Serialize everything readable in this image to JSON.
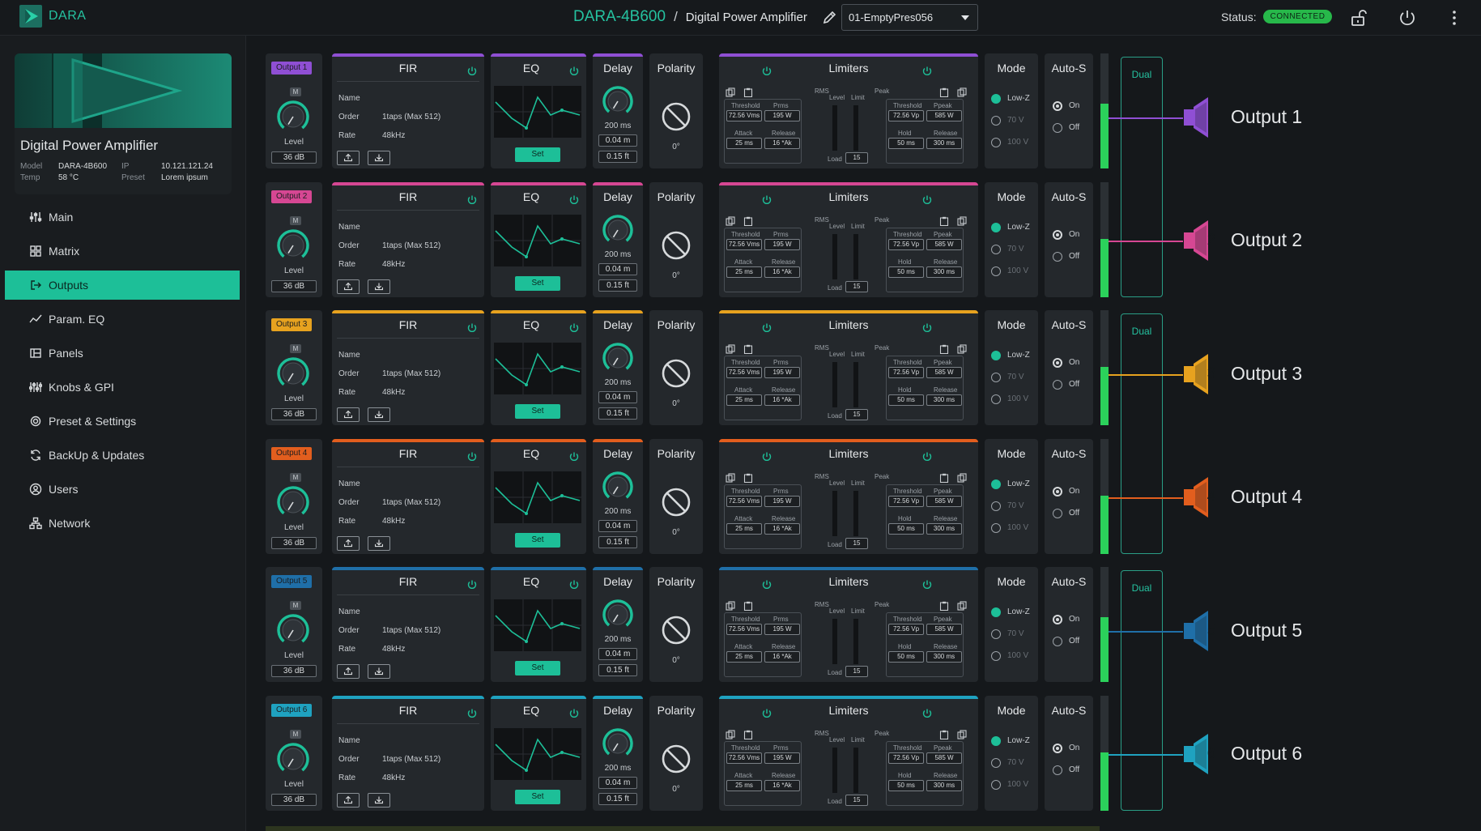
{
  "brand": {
    "name": "DARA"
  },
  "header": {
    "device": "DARA-4B600",
    "separator": "/",
    "page": "Digital Power Amplifier",
    "preset": "01-EmptyPres056",
    "status_label": "Status:",
    "status_value": "CONNECTED"
  },
  "device": {
    "title": "Digital Power Amplifier",
    "model_label": "Model",
    "model": "DARA-4B600",
    "ip_label": "IP",
    "ip": "10.121.121.24",
    "temp_label": "Temp",
    "temp": "58 °C",
    "preset_label": "Preset",
    "preset": "Lorem ipsum"
  },
  "nav": [
    {
      "label": "Main",
      "icon": "sliders-icon",
      "active": false
    },
    {
      "label": "Matrix",
      "icon": "grid-icon",
      "active": false
    },
    {
      "label": "Outputs",
      "icon": "output-icon",
      "active": true
    },
    {
      "label": "Param. EQ",
      "icon": "eq-curve-icon",
      "active": false
    },
    {
      "label": "Panels",
      "icon": "panel-icon",
      "active": false
    },
    {
      "label": "Knobs & GPI",
      "icon": "knobs-icon",
      "active": false
    },
    {
      "label": "Preset & Settings",
      "icon": "gear-icon",
      "active": false
    },
    {
      "label": "BackUp & Updates",
      "icon": "sync-icon",
      "active": false
    },
    {
      "label": "Users",
      "icon": "user-icon",
      "active": false
    },
    {
      "label": "Network",
      "icon": "network-icon",
      "active": false
    }
  ],
  "labels": {
    "fir": "FIR",
    "eq": "EQ",
    "delay": "Delay",
    "polarity": "Polarity",
    "limiters": "Limiters",
    "mode": "Mode",
    "autos": "Auto-S",
    "level": "Level",
    "m": "M",
    "name": "Name",
    "order": "Order",
    "rate": "Rate",
    "set": "Set",
    "rms": "RMS",
    "peak": "Peak",
    "lvl": "Level",
    "limit": "Limit",
    "load": "Load",
    "threshold": "Threshold",
    "prms": "Prms",
    "attack": "Attack",
    "release": "Release",
    "ppeak": "Ppeak",
    "hold": "Hold",
    "mode_lowz": "Low-Z",
    "mode_70v": "70 V",
    "mode_100v": "100 V",
    "on": "On",
    "off": "Off",
    "dual": "Dual"
  },
  "outputs": [
    {
      "label": "Output 1",
      "num": "1",
      "name": "Output 1",
      "color": "#8f4fd4"
    },
    {
      "label": "Output 2",
      "num": "2",
      "name": "Output 2",
      "color": "#d64793"
    },
    {
      "label": "Output 3",
      "num": "3",
      "name": "Output 3",
      "color": "#e7a21f"
    },
    {
      "label": "Output 4",
      "num": "4",
      "name": "Output 4",
      "color": "#e25e1e"
    },
    {
      "label": "Output 5",
      "num": "5",
      "name": "Output 5",
      "color": "#1f6fa8"
    },
    {
      "label": "Output 6",
      "num": "6",
      "name": "Output 6",
      "color": "#1fa2c0"
    }
  ],
  "values": {
    "level": "36 dB",
    "fir_order": "1taps (Max 512)",
    "fir_rate": "48kHz",
    "delay_ms": "200 ms",
    "delay_ms2": "0.04 m",
    "delay_ft": "0.15 ft",
    "polarity": "0°",
    "threshold_rms": "72.56 Vms",
    "prms": "195 W",
    "attack": "25 ms",
    "release_rms": "16 *Ak",
    "threshold_peak": "72.56 Vp",
    "ppeak": "585 W",
    "hold": "50 ms",
    "release_peak": "300 ms",
    "load": "15"
  },
  "colors": {
    "accent": "#1dbf98",
    "meter": "#2bd15b"
  }
}
